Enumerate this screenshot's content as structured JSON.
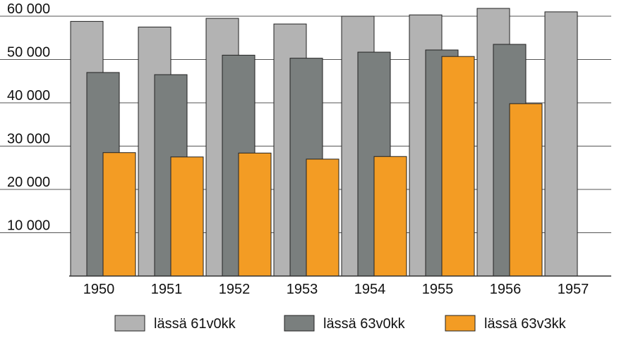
{
  "chart_data": {
    "type": "bar",
    "title": "",
    "xlabel": "",
    "ylabel": "",
    "categories": [
      "1950",
      "1951",
      "1952",
      "1953",
      "1954",
      "1955",
      "1956",
      "1957"
    ],
    "ylim": [
      0,
      60000
    ],
    "yticks": [
      10000,
      20000,
      30000,
      40000,
      50000,
      60000
    ],
    "ytick_labels": [
      "10 000",
      "20 000",
      "30 000",
      "40 000",
      "50 000",
      "60 000"
    ],
    "grid": true,
    "legend_position": "bottom",
    "series": [
      {
        "name": "lässä 61v0kk",
        "color": "#b3b3b3",
        "values": [
          58800,
          57500,
          59500,
          58200,
          60000,
          60300,
          61800,
          61000
        ]
      },
      {
        "name": "lässä 63v0kk",
        "color": "#7a7f7e",
        "values": [
          47000,
          46500,
          51000,
          50300,
          51700,
          52200,
          53500,
          null
        ]
      },
      {
        "name": "lässä 63v3kk",
        "color": "#f39c24",
        "values": [
          28500,
          27500,
          28400,
          27000,
          27600,
          50700,
          39800,
          null
        ]
      }
    ]
  }
}
